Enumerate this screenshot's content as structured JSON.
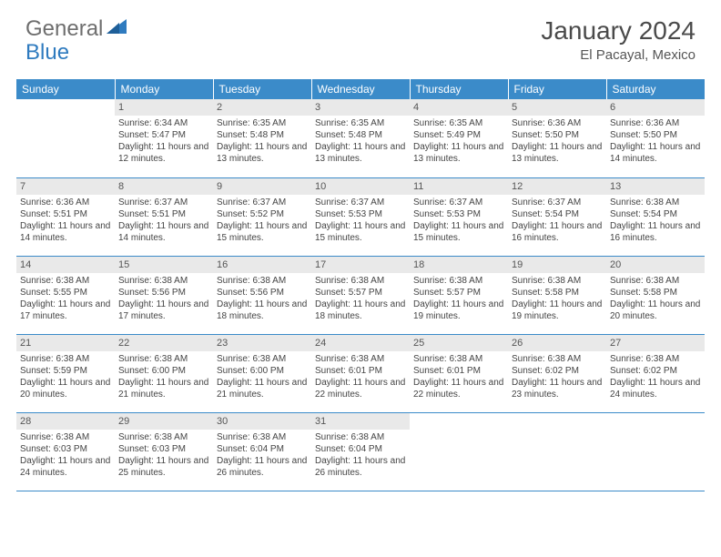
{
  "brand": {
    "part1": "General",
    "part2": "Blue",
    "gray": "#6e6e6e",
    "blue": "#2f7bbf"
  },
  "title": "January 2024",
  "location": "El Pacayal, Mexico",
  "header_bg": "#3b8bc9",
  "day_header": [
    "Sunday",
    "Monday",
    "Tuesday",
    "Wednesday",
    "Thursday",
    "Friday",
    "Saturday"
  ],
  "daynum_bg": "#e9e9e9",
  "calendar_type": "table",
  "rows": [
    [
      {
        "n": "",
        "sr": "",
        "ss": "",
        "dl": ""
      },
      {
        "n": "1",
        "sr": "Sunrise: 6:34 AM",
        "ss": "Sunset: 5:47 PM",
        "dl": "Daylight: 11 hours and 12 minutes."
      },
      {
        "n": "2",
        "sr": "Sunrise: 6:35 AM",
        "ss": "Sunset: 5:48 PM",
        "dl": "Daylight: 11 hours and 13 minutes."
      },
      {
        "n": "3",
        "sr": "Sunrise: 6:35 AM",
        "ss": "Sunset: 5:48 PM",
        "dl": "Daylight: 11 hours and 13 minutes."
      },
      {
        "n": "4",
        "sr": "Sunrise: 6:35 AM",
        "ss": "Sunset: 5:49 PM",
        "dl": "Daylight: 11 hours and 13 minutes."
      },
      {
        "n": "5",
        "sr": "Sunrise: 6:36 AM",
        "ss": "Sunset: 5:50 PM",
        "dl": "Daylight: 11 hours and 13 minutes."
      },
      {
        "n": "6",
        "sr": "Sunrise: 6:36 AM",
        "ss": "Sunset: 5:50 PM",
        "dl": "Daylight: 11 hours and 14 minutes."
      }
    ],
    [
      {
        "n": "7",
        "sr": "Sunrise: 6:36 AM",
        "ss": "Sunset: 5:51 PM",
        "dl": "Daylight: 11 hours and 14 minutes."
      },
      {
        "n": "8",
        "sr": "Sunrise: 6:37 AM",
        "ss": "Sunset: 5:51 PM",
        "dl": "Daylight: 11 hours and 14 minutes."
      },
      {
        "n": "9",
        "sr": "Sunrise: 6:37 AM",
        "ss": "Sunset: 5:52 PM",
        "dl": "Daylight: 11 hours and 15 minutes."
      },
      {
        "n": "10",
        "sr": "Sunrise: 6:37 AM",
        "ss": "Sunset: 5:53 PM",
        "dl": "Daylight: 11 hours and 15 minutes."
      },
      {
        "n": "11",
        "sr": "Sunrise: 6:37 AM",
        "ss": "Sunset: 5:53 PM",
        "dl": "Daylight: 11 hours and 15 minutes."
      },
      {
        "n": "12",
        "sr": "Sunrise: 6:37 AM",
        "ss": "Sunset: 5:54 PM",
        "dl": "Daylight: 11 hours and 16 minutes."
      },
      {
        "n": "13",
        "sr": "Sunrise: 6:38 AM",
        "ss": "Sunset: 5:54 PM",
        "dl": "Daylight: 11 hours and 16 minutes."
      }
    ],
    [
      {
        "n": "14",
        "sr": "Sunrise: 6:38 AM",
        "ss": "Sunset: 5:55 PM",
        "dl": "Daylight: 11 hours and 17 minutes."
      },
      {
        "n": "15",
        "sr": "Sunrise: 6:38 AM",
        "ss": "Sunset: 5:56 PM",
        "dl": "Daylight: 11 hours and 17 minutes."
      },
      {
        "n": "16",
        "sr": "Sunrise: 6:38 AM",
        "ss": "Sunset: 5:56 PM",
        "dl": "Daylight: 11 hours and 18 minutes."
      },
      {
        "n": "17",
        "sr": "Sunrise: 6:38 AM",
        "ss": "Sunset: 5:57 PM",
        "dl": "Daylight: 11 hours and 18 minutes."
      },
      {
        "n": "18",
        "sr": "Sunrise: 6:38 AM",
        "ss": "Sunset: 5:57 PM",
        "dl": "Daylight: 11 hours and 19 minutes."
      },
      {
        "n": "19",
        "sr": "Sunrise: 6:38 AM",
        "ss": "Sunset: 5:58 PM",
        "dl": "Daylight: 11 hours and 19 minutes."
      },
      {
        "n": "20",
        "sr": "Sunrise: 6:38 AM",
        "ss": "Sunset: 5:58 PM",
        "dl": "Daylight: 11 hours and 20 minutes."
      }
    ],
    [
      {
        "n": "21",
        "sr": "Sunrise: 6:38 AM",
        "ss": "Sunset: 5:59 PM",
        "dl": "Daylight: 11 hours and 20 minutes."
      },
      {
        "n": "22",
        "sr": "Sunrise: 6:38 AM",
        "ss": "Sunset: 6:00 PM",
        "dl": "Daylight: 11 hours and 21 minutes."
      },
      {
        "n": "23",
        "sr": "Sunrise: 6:38 AM",
        "ss": "Sunset: 6:00 PM",
        "dl": "Daylight: 11 hours and 21 minutes."
      },
      {
        "n": "24",
        "sr": "Sunrise: 6:38 AM",
        "ss": "Sunset: 6:01 PM",
        "dl": "Daylight: 11 hours and 22 minutes."
      },
      {
        "n": "25",
        "sr": "Sunrise: 6:38 AM",
        "ss": "Sunset: 6:01 PM",
        "dl": "Daylight: 11 hours and 22 minutes."
      },
      {
        "n": "26",
        "sr": "Sunrise: 6:38 AM",
        "ss": "Sunset: 6:02 PM",
        "dl": "Daylight: 11 hours and 23 minutes."
      },
      {
        "n": "27",
        "sr": "Sunrise: 6:38 AM",
        "ss": "Sunset: 6:02 PM",
        "dl": "Daylight: 11 hours and 24 minutes."
      }
    ],
    [
      {
        "n": "28",
        "sr": "Sunrise: 6:38 AM",
        "ss": "Sunset: 6:03 PM",
        "dl": "Daylight: 11 hours and 24 minutes."
      },
      {
        "n": "29",
        "sr": "Sunrise: 6:38 AM",
        "ss": "Sunset: 6:03 PM",
        "dl": "Daylight: 11 hours and 25 minutes."
      },
      {
        "n": "30",
        "sr": "Sunrise: 6:38 AM",
        "ss": "Sunset: 6:04 PM",
        "dl": "Daylight: 11 hours and 26 minutes."
      },
      {
        "n": "31",
        "sr": "Sunrise: 6:38 AM",
        "ss": "Sunset: 6:04 PM",
        "dl": "Daylight: 11 hours and 26 minutes."
      },
      {
        "n": "",
        "sr": "",
        "ss": "",
        "dl": ""
      },
      {
        "n": "",
        "sr": "",
        "ss": "",
        "dl": ""
      },
      {
        "n": "",
        "sr": "",
        "ss": "",
        "dl": ""
      }
    ]
  ]
}
